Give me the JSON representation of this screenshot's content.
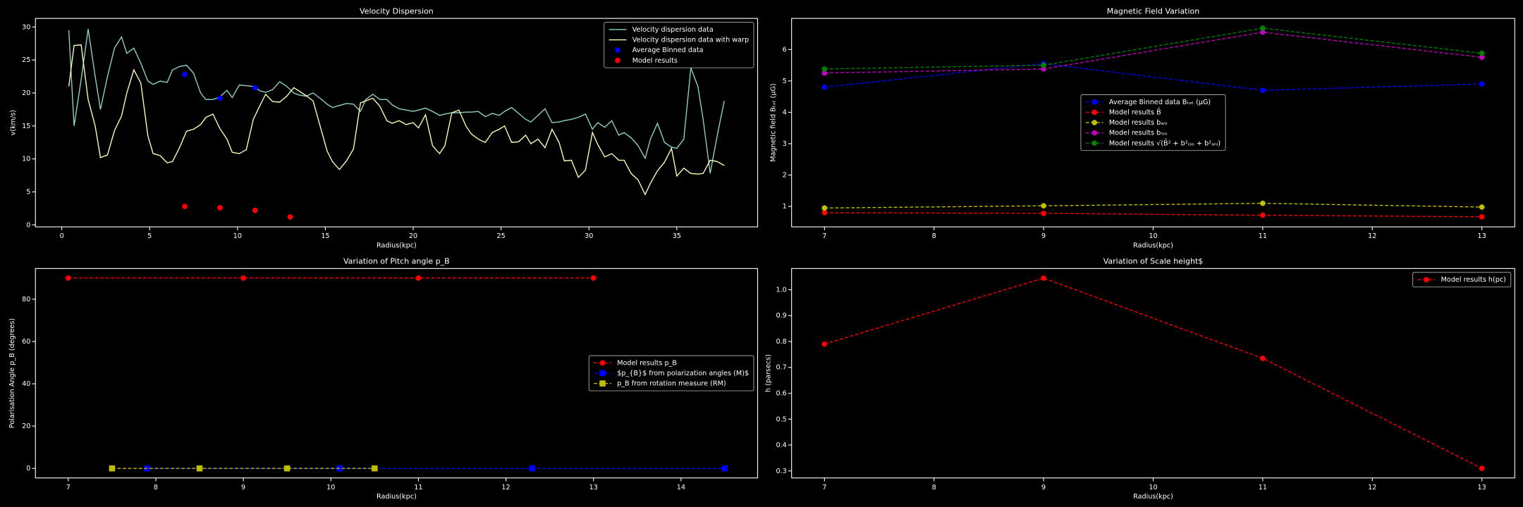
{
  "chart_data": [
    {
      "type": "line",
      "title": "Velocity Dispersion",
      "xlabel": "Radius(kpc)",
      "ylabel": "v(km/s)",
      "legend": "upper right",
      "xlim": [
        -1.5,
        39.6
      ],
      "xticks": [
        0,
        5,
        10,
        15,
        20,
        25,
        30,
        35
      ],
      "ylim": [
        -0.3,
        31.3
      ],
      "yticks": [
        0,
        5,
        10,
        15,
        20,
        25,
        30
      ],
      "x": [
        0.4,
        0.7,
        1.1,
        1.5,
        1.9,
        2.2,
        2.6,
        3.0,
        3.4,
        3.7,
        4.1,
        4.5,
        4.9,
        5.2,
        5.6,
        6.0,
        6.3,
        6.7,
        7.1,
        7.5,
        7.9,
        8.2,
        8.6,
        9.0,
        9.4,
        9.7,
        10.1,
        10.5,
        10.9,
        11.3,
        11.6,
        12.0,
        12.4,
        12.8,
        13.2,
        13.5,
        13.9,
        14.3,
        14.7,
        15.1,
        15.4,
        15.8,
        16.2,
        16.6,
        17.0,
        17.3,
        17.7,
        18.1,
        18.5,
        18.8,
        19.2,
        19.6,
        20.0,
        20.3,
        20.7,
        21.1,
        21.5,
        21.8,
        22.2,
        22.6,
        23.0,
        23.3,
        23.7,
        24.1,
        24.5,
        24.9,
        25.2,
        25.6,
        26.0,
        26.4,
        26.7,
        27.1,
        27.5,
        27.9,
        28.3,
        28.6,
        29.0,
        29.4,
        29.8,
        30.2,
        30.5,
        30.9,
        31.3,
        31.7,
        32.0,
        32.4,
        32.8,
        33.2,
        33.5,
        33.9,
        34.3,
        34.7,
        35.0,
        35.4,
        35.8,
        36.2,
        36.5,
        36.9,
        37.3,
        37.7
      ],
      "series": [
        {
          "name": "Velocity dispersion data",
          "color": "#8dd3c7",
          "linestyle": "-",
          "values": [
            29.5,
            15,
            22,
            29.7,
            22.5,
            17.5,
            22.5,
            26.8,
            28.5,
            26,
            26.8,
            24.5,
            21.8,
            21.3,
            21.8,
            21.6,
            23.5,
            24,
            24.2,
            23,
            20,
            19,
            19,
            19.4,
            20.4,
            19.3,
            21.2,
            21.1,
            21,
            20.3,
            20.1,
            20.5,
            21.7,
            21,
            20,
            19.7,
            19.5,
            20,
            19.2,
            18.3,
            17.8,
            18.1,
            18.4,
            18.3,
            17.2,
            19,
            19.8,
            19,
            19,
            18.2,
            17.6,
            17.4,
            17.2,
            17.4,
            17.7,
            17.2,
            16.6,
            16.8,
            17,
            17,
            17.1,
            17.1,
            17.2,
            16.4,
            16.9,
            16.6,
            17.2,
            17.8,
            16.9,
            16,
            15.6,
            16.6,
            17.6,
            15.5,
            15.6,
            15.8,
            16,
            16.3,
            16.8,
            14.5,
            15.5,
            14.8,
            15.8,
            13.6,
            14,
            13.2,
            12,
            10.1,
            13,
            15.4,
            12.5,
            11.8,
            11.6,
            13,
            23.8,
            21,
            16,
            7.8,
            13.5,
            18.8
          ]
        },
        {
          "name": "Velocity dispersion data with warp",
          "color": "#feffb3",
          "linestyle": "-",
          "values": [
            21,
            27.2,
            27.3,
            19,
            15,
            10.2,
            10.6,
            14.3,
            16.5,
            20,
            23.5,
            21.5,
            13.5,
            10.8,
            10.5,
            9.4,
            9.6,
            11.7,
            14.2,
            14.5,
            15.2,
            16.3,
            16.8,
            14.6,
            13,
            11,
            10.8,
            11.4,
            16,
            18.2,
            19.8,
            18.7,
            18.6,
            19.5,
            20.8,
            20.3,
            19.6,
            18.8,
            15,
            11.2,
            9.6,
            8.4,
            9.7,
            11.5,
            18.5,
            18.8,
            19.2,
            18,
            15.8,
            15.4,
            15.8,
            15.2,
            15.5,
            14.7,
            16.7,
            12,
            10.8,
            12,
            17,
            17.4,
            15,
            13.8,
            13,
            12.5,
            14,
            14.5,
            15,
            12.5,
            12.6,
            13.6,
            12.3,
            13,
            11.7,
            14.5,
            12.5,
            9.7,
            9.8,
            7.2,
            8.3,
            14,
            12.2,
            10.3,
            10.8,
            9.8,
            9.8,
            7.8,
            6.8,
            4.6,
            6.3,
            8.2,
            9.5,
            11.6,
            7.4,
            8.6,
            7.8,
            7.7,
            7.8,
            9.8,
            9.6,
            9
          ]
        },
        {
          "name": "Average Binned data",
          "color": "#0000ff",
          "marker": "o",
          "x": [
            7,
            9,
            11
          ],
          "values": [
            22.8,
            19.2,
            20.8
          ]
        },
        {
          "name": "Model results",
          "color": "#ff0000",
          "marker": "o",
          "x": [
            7,
            9,
            11,
            13
          ],
          "values": [
            2.8,
            2.6,
            2.2,
            1.2
          ]
        }
      ]
    },
    {
      "type": "line",
      "title": "Magnetic Field Variation",
      "xlabel": "Radius(kpc)",
      "ylabel": "Magnetic field Bₜₒₜ (μG)",
      "legend": "center",
      "xlim": [
        6.7,
        13.3
      ],
      "xticks": [
        7,
        8,
        9,
        10,
        11,
        12,
        13
      ],
      "ylim": [
        0.35,
        6.99
      ],
      "yticks": [
        1,
        2,
        3,
        4,
        5,
        6
      ],
      "x": [
        7,
        9,
        11,
        13
      ],
      "series": [
        {
          "name": "Average Binned data Bₜₒₜ (μG)",
          "color": "#0000ff",
          "marker": "o",
          "linestyle": "--",
          "values": [
            4.8,
            5.55,
            4.7,
            4.9
          ]
        },
        {
          "name": "Model results B̄",
          "color": "#ff0000",
          "marker": "o",
          "linestyle": "--",
          "values": [
            0.8,
            0.78,
            0.72,
            0.67
          ]
        },
        {
          "name": "Model results bₐₙᵢ",
          "color": "#bfbf00",
          "marker": "o",
          "linestyle": "--",
          "values": [
            0.95,
            1.02,
            1.1,
            0.98
          ]
        },
        {
          "name": "Model results bᵢₛₒ",
          "color": "#bf00bf",
          "marker": "o",
          "linestyle": "--",
          "values": [
            5.25,
            5.38,
            6.55,
            5.75
          ]
        },
        {
          "name": "Model results √(B̄² + b²ᵢₛₒ + b²ₐₙᵢ)",
          "color": "#008000",
          "marker": "o",
          "linestyle": "--",
          "values": [
            5.38,
            5.5,
            6.68,
            5.88
          ]
        }
      ]
    },
    {
      "type": "line",
      "title": "Variation of Pitch angle p_B",
      "xlabel": "Radius(kpc)",
      "ylabel": "Polarisation Angle p_B (degrees)",
      "legend": "center right",
      "xlim": [
        6.625,
        14.875
      ],
      "xticks": [
        7,
        8,
        9,
        10,
        11,
        12,
        13,
        14
      ],
      "ylim": [
        -4.5,
        94.5
      ],
      "yticks": [
        0,
        20,
        40,
        60,
        80
      ],
      "series": [
        {
          "name": "Model results p_B",
          "color": "#ff0000",
          "marker": "o",
          "linestyle": "--",
          "x": [
            7,
            9,
            11,
            13
          ],
          "values": [
            90,
            90,
            90,
            90
          ]
        },
        {
          "name": "$p_{B}$ from polarization angles (M)$",
          "color": "#0000ff",
          "marker": "s",
          "linestyle": "--",
          "x": [
            7.9,
            10.1,
            12.3,
            14.5
          ],
          "values": [
            0,
            0,
            0,
            0
          ]
        },
        {
          "name": "p_B from rotation measure (RM)",
          "color": "#bfbf00",
          "marker": "s",
          "linestyle": "--",
          "x": [
            7.5,
            8.5,
            9.5,
            10.5
          ],
          "values": [
            0,
            0,
            0,
            0
          ]
        }
      ]
    },
    {
      "type": "line",
      "title": "Variation of Scale height$",
      "xlabel": "Radius(kpc)",
      "ylabel": "h (parsecs)",
      "legend": "upper right",
      "xlim": [
        6.7,
        13.3
      ],
      "xticks": [
        7,
        8,
        9,
        10,
        11,
        12,
        13
      ],
      "ylim": [
        0.273,
        1.082
      ],
      "yticks": [
        0.3,
        0.4,
        0.5,
        0.6,
        0.7,
        0.8,
        0.9,
        {
          "value": 1,
          "label": "1.0"
        }
      ],
      "x": [
        7,
        9,
        11,
        13
      ],
      "series": [
        {
          "name": "Model results h(pc)",
          "color": "#ff0000",
          "marker": "o",
          "linestyle": "--",
          "values": [
            0.79,
            1.045,
            0.735,
            0.31
          ]
        }
      ]
    }
  ]
}
